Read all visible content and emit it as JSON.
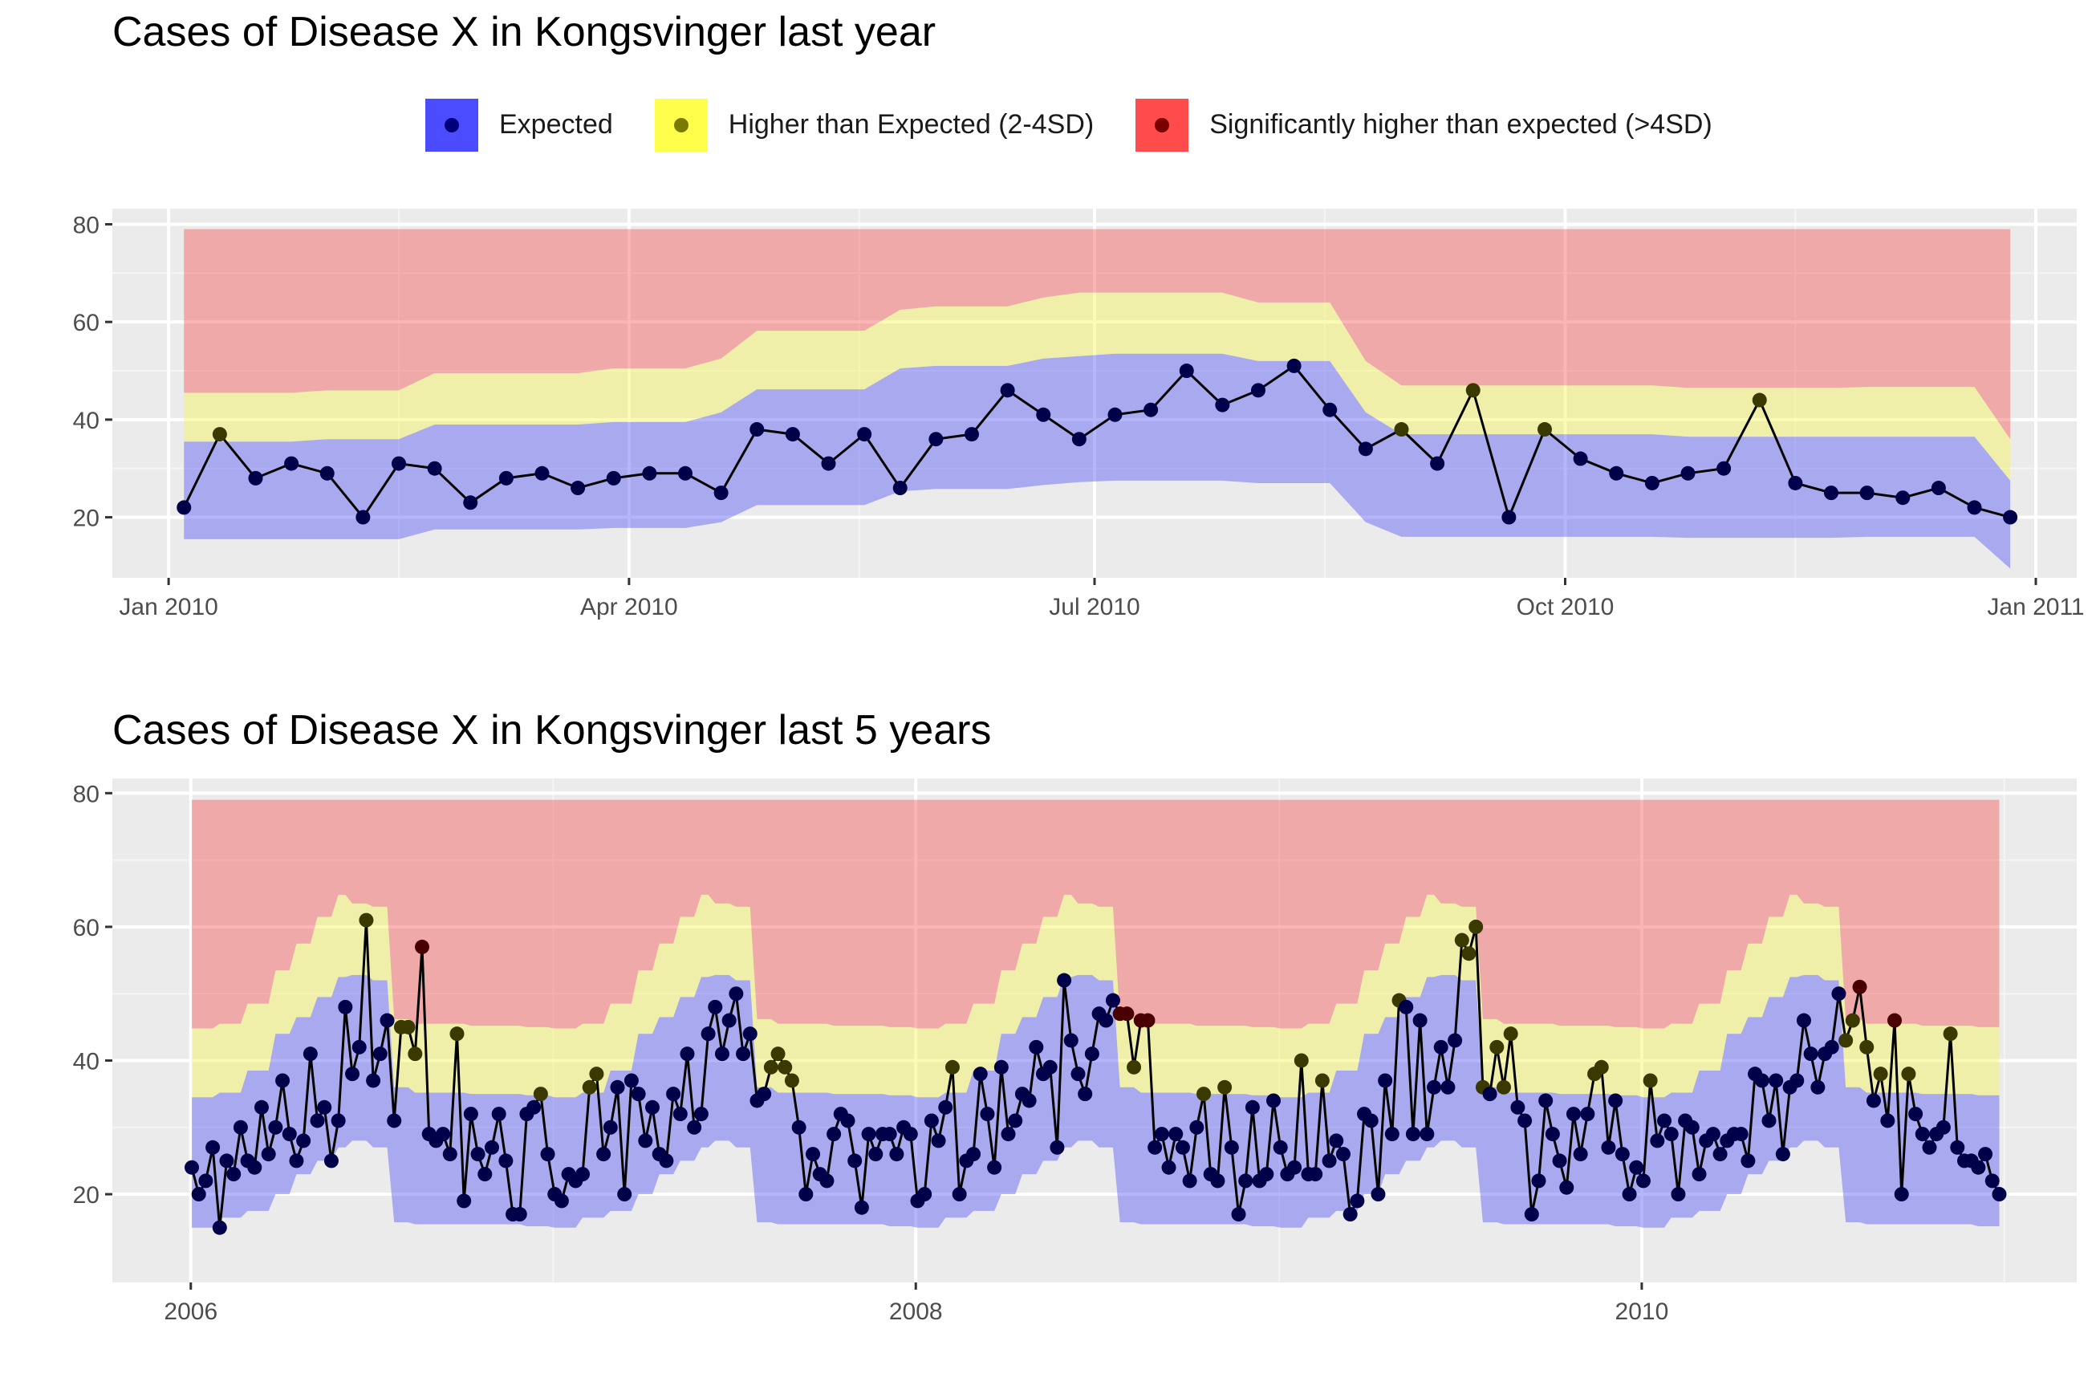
{
  "colors": {
    "panel_bg": "#EBEBEB",
    "grid_major": "#FFFFFF",
    "expected_fill": "#4747F5",
    "higher_fill": "#F5F547",
    "significant_fill": "#F54747",
    "line": "#000000",
    "axis_text": "#4D4D4D"
  },
  "legend": {
    "items": [
      {
        "label": "Expected",
        "fill": "#4B4BFF",
        "dot": "#00007A"
      },
      {
        "label": "Higher than Expected (2-4SD)",
        "fill": "#FFFF4B",
        "dot": "#7A7A00"
      },
      {
        "label": "Significantly higher than expected (>4SD)",
        "fill": "#FF4B4B",
        "dot": "#7A0000"
      }
    ]
  },
  "chart_data": [
    {
      "type": "line",
      "title": "Cases of Disease X in Kongsvinger last year",
      "xlabel": "",
      "ylabel": "",
      "x_ticks": [
        "Jan 2010",
        "Apr 2010",
        "Jul 2010",
        "Oct 2010",
        "Jan 2011"
      ],
      "y_ticks": [
        20,
        40,
        60,
        80
      ],
      "ylim": [
        10,
        80
      ],
      "x_start": "2010-01-04",
      "x_end": "2010-12-27",
      "bands": {
        "expected_lower": [
          15.5,
          15.5,
          15.5,
          15.5,
          15.5,
          15.5,
          15.5,
          15.5,
          17.5,
          17.5,
          17.5,
          17.5,
          17.5,
          17.8,
          17.8,
          17.8,
          17.8,
          19.0,
          22.5,
          22.5,
          22.5,
          22.5,
          25.3,
          25.8,
          25.8,
          25.8,
          25.8,
          26.6,
          27.2,
          27.5,
          27.5,
          27.5,
          27.5,
          27.0,
          27.0,
          27.0,
          27.0,
          19.0,
          16.0,
          16.0,
          16.0,
          16.0,
          16.0,
          16.0,
          16.0,
          16.0,
          16.0,
          15.8,
          15.8,
          15.8,
          15.8,
          15.8,
          16.0,
          16.0,
          16.0,
          16.0,
          16.0,
          9.5
        ],
        "higher_lower": [
          35.5,
          35.5,
          35.5,
          35.5,
          36.0,
          36.0,
          36.0,
          36.0,
          39.0,
          39.0,
          39.0,
          39.0,
          39.0,
          39.5,
          39.5,
          39.5,
          39.5,
          41.5,
          46.2,
          46.2,
          46.2,
          46.2,
          50.5,
          51.0,
          51.0,
          51.0,
          51.0,
          52.5,
          53.0,
          53.5,
          53.5,
          53.5,
          53.5,
          52.0,
          52.0,
          52.0,
          52.0,
          41.5,
          37.0,
          37.0,
          37.0,
          37.0,
          37.0,
          37.0,
          37.0,
          37.0,
          37.0,
          36.5,
          36.5,
          36.5,
          36.5,
          36.5,
          36.5,
          36.5,
          36.5,
          36.5,
          36.5,
          27.5
        ],
        "significant_lower": [
          45.5,
          45.5,
          45.5,
          45.5,
          46.0,
          46.0,
          46.0,
          46.0,
          49.5,
          49.5,
          49.5,
          49.5,
          49.5,
          50.5,
          50.5,
          50.5,
          50.5,
          52.5,
          58.2,
          58.2,
          58.2,
          58.2,
          62.5,
          63.2,
          63.2,
          63.2,
          63.2,
          65.0,
          66.0,
          66.0,
          66.0,
          66.0,
          66.0,
          64.0,
          64.0,
          64.0,
          64.0,
          52.0,
          47.0,
          47.0,
          47.0,
          47.0,
          47.0,
          47.0,
          47.0,
          47.0,
          47.0,
          46.5,
          46.5,
          46.5,
          46.5,
          46.5,
          46.7,
          46.7,
          46.7,
          46.7,
          46.7,
          36.0
        ],
        "upper": 79
      },
      "series": [
        {
          "values": [
            22,
            37,
            28,
            31,
            29,
            20,
            31,
            30,
            23,
            28,
            29,
            26,
            28,
            29,
            29,
            25,
            38,
            37,
            31,
            37,
            26,
            36,
            37,
            46,
            41,
            36,
            41,
            42,
            50,
            43,
            46,
            51,
            42,
            34,
            38,
            31,
            46,
            20,
            38,
            32,
            29,
            27,
            29,
            30,
            44,
            27,
            25,
            25,
            24,
            26,
            22,
            20
          ]
        }
      ]
    },
    {
      "type": "line",
      "title": "Cases of Disease X in Kongsvinger last 5 years",
      "xlabel": "",
      "ylabel": "",
      "x_ticks": [
        "2006",
        "2008",
        "2010"
      ],
      "y_ticks": [
        20,
        40,
        60,
        80
      ],
      "ylim": [
        10,
        80
      ],
      "x_start": "2006-01-02",
      "x_end": "2010-12-27",
      "series": [
        {
          "values": [
            24,
            20,
            22,
            27,
            15,
            25,
            23,
            30,
            25,
            24,
            33,
            26,
            30,
            37,
            29,
            25,
            28,
            41,
            31,
            33,
            25,
            31,
            48,
            38,
            42,
            61,
            37,
            41,
            46,
            31,
            45,
            45,
            41,
            57,
            29,
            28,
            29,
            26,
            44,
            19,
            32,
            26,
            23,
            27,
            32,
            25,
            17,
            17,
            32,
            33,
            35,
            26,
            20,
            19,
            23,
            22,
            23,
            36,
            38,
            26,
            30,
            36,
            20,
            37,
            35,
            28,
            33,
            26,
            25,
            35,
            32,
            41,
            30,
            32,
            44,
            48,
            41,
            46,
            50,
            41,
            44,
            34,
            35,
            39,
            41,
            39,
            37,
            30,
            20,
            26,
            23,
            22,
            29,
            32,
            31,
            25,
            18,
            29,
            26,
            29,
            29,
            26,
            30,
            29,
            19,
            20,
            31,
            28,
            33,
            39,
            20,
            25,
            26,
            38,
            32,
            24,
            39,
            29,
            31,
            35,
            34,
            42,
            38,
            39,
            27,
            52,
            43,
            38,
            35,
            41,
            47,
            46,
            49,
            47,
            47,
            39,
            46,
            46,
            27,
            29,
            24,
            29,
            27,
            22,
            30,
            35,
            23,
            22,
            36,
            27,
            17,
            22,
            33,
            22,
            23,
            34,
            27,
            23,
            24,
            40,
            23,
            23,
            37,
            25,
            28,
            26,
            17,
            19,
            32,
            31,
            20,
            37,
            29,
            49,
            48,
            29,
            46,
            29,
            36,
            42,
            36,
            43,
            58,
            56,
            60,
            36,
            35,
            42,
            36,
            44,
            33,
            31,
            17,
            22,
            34,
            29,
            25,
            21,
            32,
            26,
            32,
            38,
            39,
            27,
            34,
            26,
            20,
            24,
            22,
            37,
            28,
            31,
            29,
            20,
            31,
            30,
            23,
            28,
            29,
            26,
            28,
            29,
            29,
            25,
            38,
            37,
            31,
            37,
            26,
            36,
            37,
            46,
            41,
            36,
            41,
            42,
            50,
            43,
            46,
            51,
            42,
            34,
            38,
            31,
            46,
            20,
            38,
            32,
            29,
            27,
            29,
            30,
            44,
            27,
            25,
            25,
            24,
            26,
            22,
            20
          ]
        }
      ]
    }
  ]
}
